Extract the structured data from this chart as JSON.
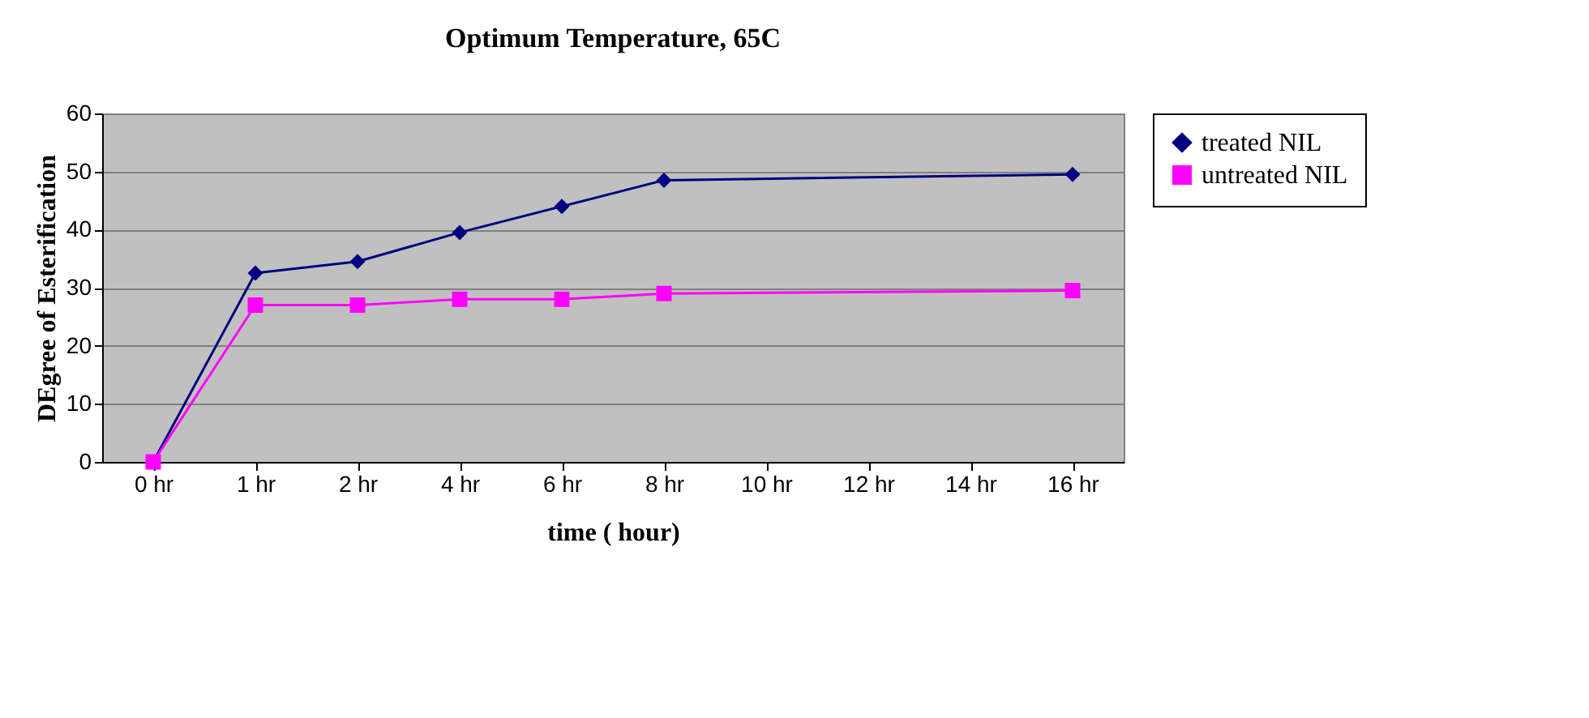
{
  "chart_data": {
    "type": "line",
    "title": "Optimum Temperature, 65C",
    "xlabel": "time ( hour)",
    "ylabel": "DEgree of Esterification",
    "categories": [
      "0 hr",
      "1 hr",
      "2 hr",
      "4 hr",
      "6 hr",
      "8 hr",
      "10 hr",
      "12 hr",
      "14 hr",
      "16 hr"
    ],
    "series": [
      {
        "name": "treated NIL",
        "color": "#000080",
        "marker": "diamond",
        "x": [
          "0 hr",
          "1 hr",
          "2 hr",
          "4 hr",
          "6 hr",
          "8 hr",
          "16 hr"
        ],
        "values": [
          0,
          32.5,
          34.5,
          39.5,
          44,
          48.5,
          49.5
        ]
      },
      {
        "name": "untreated NIL",
        "color": "#ff00ff",
        "marker": "square",
        "x": [
          "0 hr",
          "1 hr",
          "2 hr",
          "4 hr",
          "6 hr",
          "8 hr",
          "16 hr"
        ],
        "values": [
          0,
          27,
          27,
          28,
          28,
          29,
          29.5
        ]
      }
    ],
    "ylim": [
      0,
      60
    ],
    "yticks": [
      0,
      10,
      20,
      30,
      40,
      50,
      60
    ],
    "grid": "y",
    "legend": "right",
    "line_style": "solid"
  }
}
